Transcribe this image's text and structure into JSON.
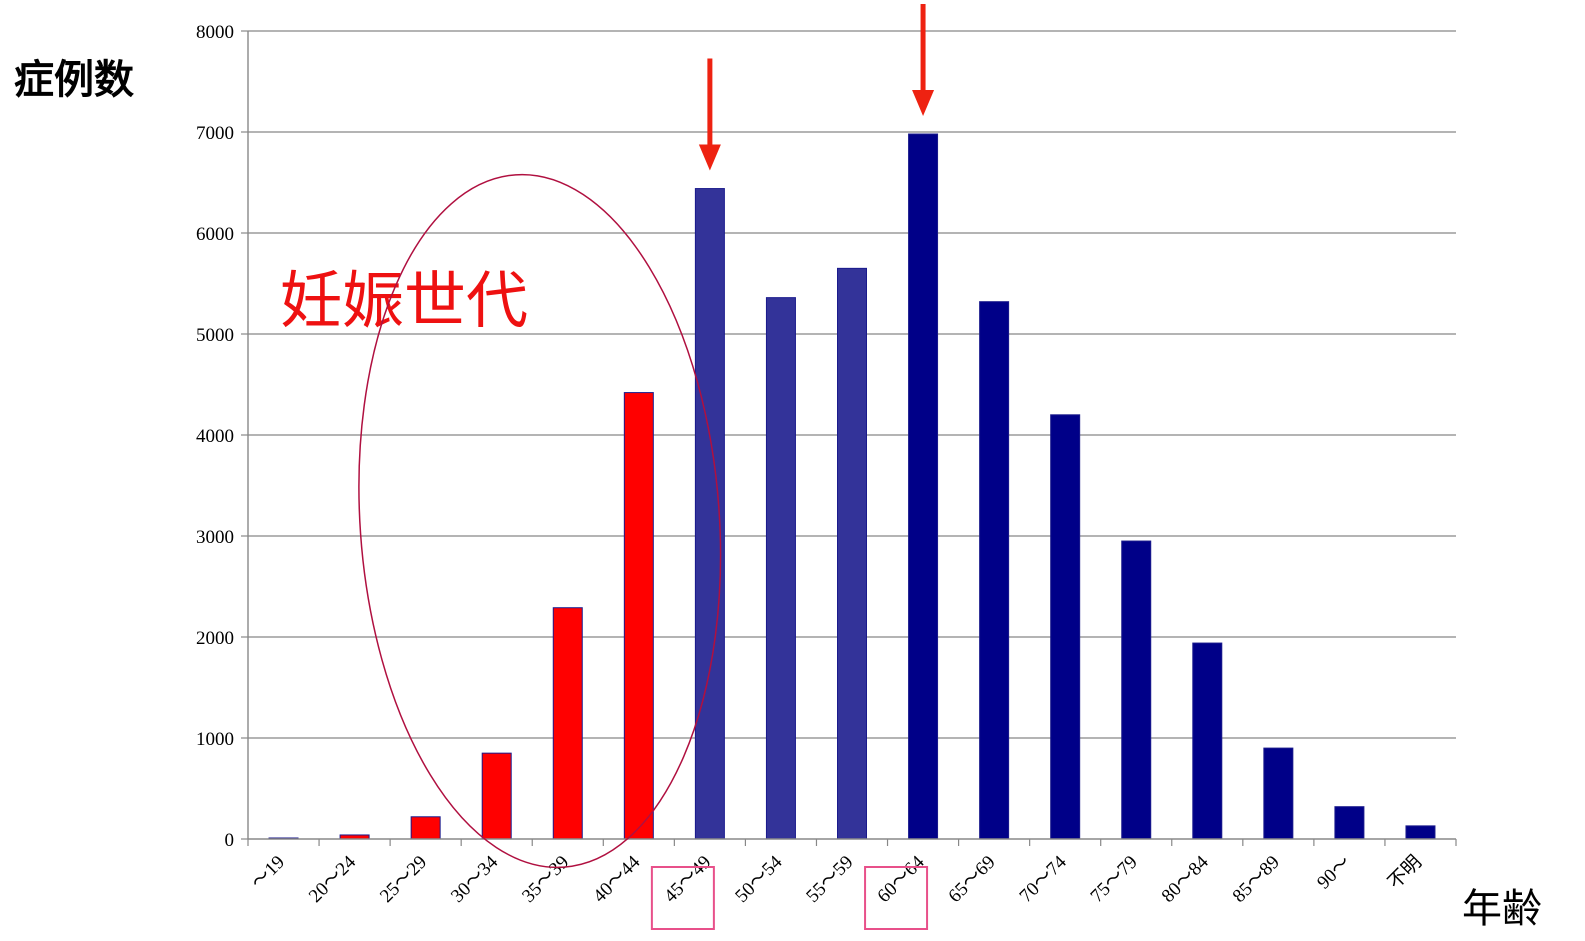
{
  "chart_data": {
    "type": "bar",
    "ylabel": "症例数",
    "xlabel": "年齢",
    "ylim": [
      0,
      8000
    ],
    "yticks": [
      0,
      1000,
      2000,
      3000,
      4000,
      5000,
      6000,
      7000,
      8000
    ],
    "grid": true,
    "categories": [
      "〜19",
      "20〜24",
      "25〜29",
      "30〜34",
      "35〜39",
      "40〜44",
      "45〜49",
      "50〜54",
      "55〜59",
      "60〜64",
      "65〜69",
      "70〜74",
      "75〜79",
      "80〜84",
      "85〜89",
      "90〜",
      "不明"
    ],
    "values": [
      10,
      40,
      220,
      850,
      2290,
      4420,
      6440,
      5360,
      5650,
      6980,
      5320,
      4200,
      2950,
      1940,
      900,
      320,
      130
    ],
    "bar_colors": [
      "#ff0000",
      "#ff0000",
      "#ff0000",
      "#ff0000",
      "#ff0000",
      "#ff0000",
      "#333399",
      "#333399",
      "#333399",
      "#000088",
      "#000088",
      "#000088",
      "#000088",
      "#000088",
      "#000088",
      "#000088",
      "#000088"
    ],
    "highlighted_categories": [
      "45〜49",
      "60〜64"
    ],
    "arrow_targets": [
      "45〜49",
      "60〜64"
    ],
    "annotation": {
      "text": "妊娠世代",
      "color": "#ee1111",
      "encircled_categories": [
        "25〜29",
        "30〜34",
        "35〜39",
        "40〜44"
      ]
    },
    "colors": {
      "red_bar": "#ff0000",
      "mid_bar": "#333399",
      "dark_bar": "#000088",
      "bar_edge": "#1a1a8c",
      "arrow": "#ee2211",
      "ellipse": "#b01040",
      "highlight_box": "#e8508a",
      "grid": "#888888"
    }
  }
}
